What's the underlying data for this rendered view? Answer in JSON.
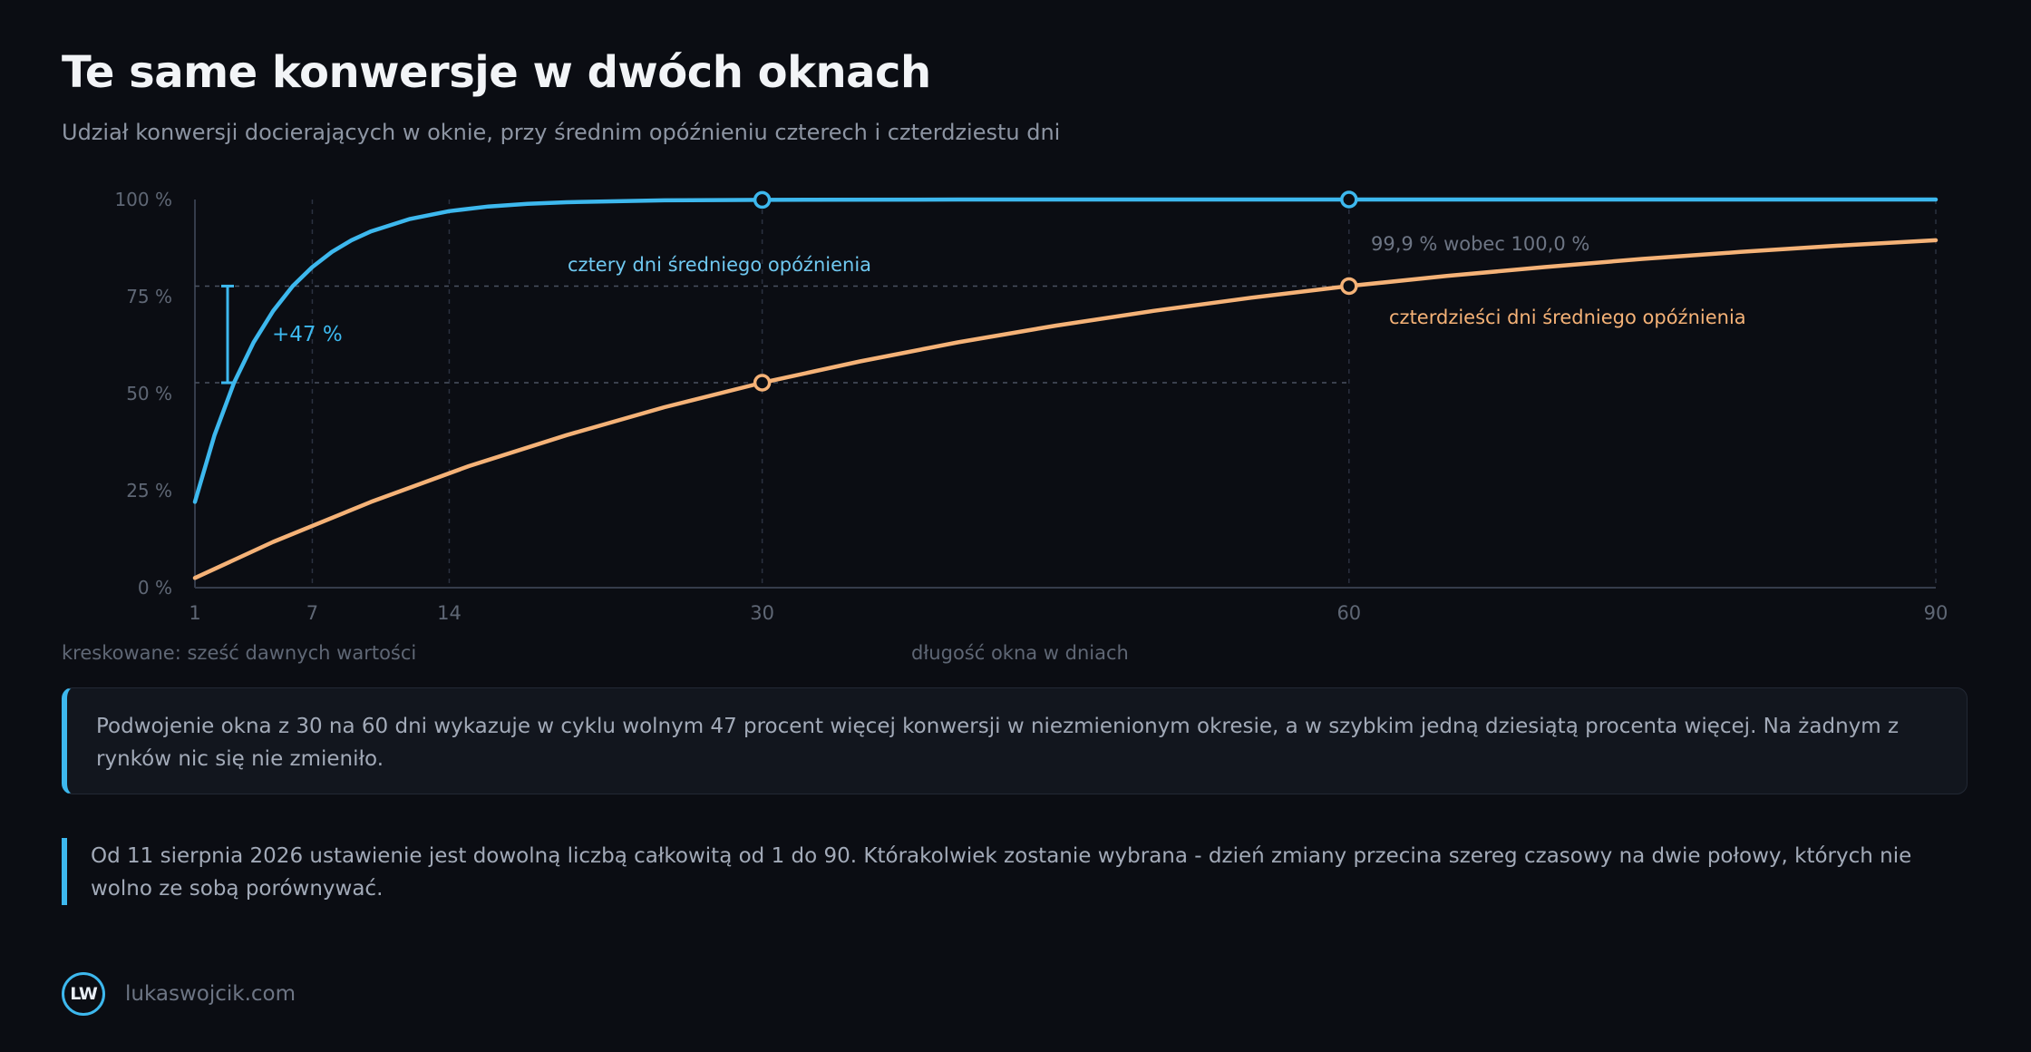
{
  "header": {
    "title": "Te same konwersje w dwóch oknach",
    "subtitle": "Udział konwersji docierających w oknie, przy średnim opóźnieniu czterech i czterdziestu dni"
  },
  "chart_data": {
    "type": "line",
    "xlabel": "długość okna w dniach",
    "ylabel": "",
    "xlim": [
      1,
      90
    ],
    "ylim": [
      0,
      100
    ],
    "x_ticks": [
      "1",
      "7",
      "14",
      "30",
      "60",
      "90"
    ],
    "y_ticks": [
      "0 %",
      "25 %",
      "50 %",
      "75 %",
      "100 %"
    ],
    "dashed_gridlines_x": [
      7,
      14,
      30,
      60,
      90
    ],
    "series": [
      {
        "name": "cztery dni średniego opóźnienia",
        "color": "#3db8ee",
        "x": [
          1,
          2,
          3,
          4,
          5,
          6,
          7,
          8,
          9,
          10,
          12,
          14,
          16,
          18,
          20,
          25,
          30,
          40,
          50,
          60,
          70,
          80,
          90
        ],
        "y": [
          22.1,
          39.3,
          52.8,
          63.2,
          71.3,
          77.7,
          82.6,
          86.5,
          89.5,
          91.8,
          95.0,
          97.0,
          98.2,
          98.9,
          99.3,
          99.8,
          99.9,
          100.0,
          100.0,
          100.0,
          100.0,
          100.0,
          100.0
        ],
        "markers_at_x": [
          30,
          60
        ]
      },
      {
        "name": "czterdzieści dni średniego opóźnienia",
        "color": "#f5b277",
        "x": [
          1,
          5,
          10,
          15,
          20,
          25,
          30,
          35,
          40,
          45,
          50,
          55,
          60,
          65,
          70,
          75,
          80,
          85,
          90
        ],
        "y": [
          2.5,
          11.8,
          22.1,
          31.3,
          39.3,
          46.5,
          52.8,
          58.3,
          63.2,
          67.5,
          71.3,
          74.7,
          77.7,
          80.3,
          82.6,
          84.7,
          86.5,
          88.1,
          89.5
        ],
        "markers_at_x": [
          30,
          60
        ]
      }
    ],
    "annotations": {
      "gap_label": "+47 %",
      "compare_label": "99,9 % wobec 100,0 %"
    }
  },
  "legend_note": "kreskowane: sześć dawnych wartości",
  "callout": "Podwojenie okna z 30 na 60 dni wykazuje w cyklu wolnym 47 procent więcej konwersji w niezmienionym okresie, a w szybkim jedną dziesiątą procenta więcej. Na żadnym z rynków nic się nie zmieniło.",
  "note": "Od 11 sierpnia 2026 ustawienie jest dowolną liczbą całkowitą od 1 do 90. Którakolwiek zostanie wybrana - dzień zmiany przecina szereg czasowy na dwie połowy, których nie wolno ze sobą porównywać.",
  "footer": {
    "logo_text": "LW",
    "site": "lukaswojcik.com"
  }
}
